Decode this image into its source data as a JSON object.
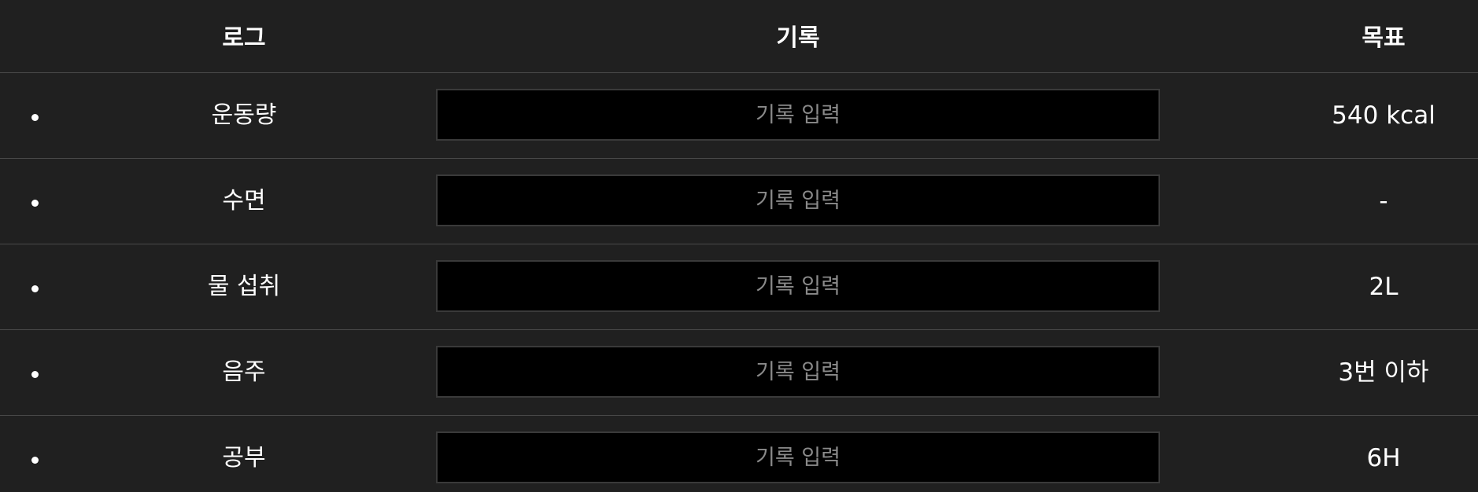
{
  "header": {
    "log": "로그",
    "record": "기록",
    "goal": "목표"
  },
  "rows": [
    {
      "log": "운동량",
      "record_placeholder": "기록 입력",
      "goal": "540 kcal"
    },
    {
      "log": "수면",
      "record_placeholder": "기록 입력",
      "goal": "-"
    },
    {
      "log": "물 섭취",
      "record_placeholder": "기록 입력",
      "goal": "2L"
    },
    {
      "log": "음주",
      "record_placeholder": "기록 입력",
      "goal": "3번 이하"
    },
    {
      "log": "공부",
      "record_placeholder": "기록 입력",
      "goal": "6H"
    }
  ]
}
